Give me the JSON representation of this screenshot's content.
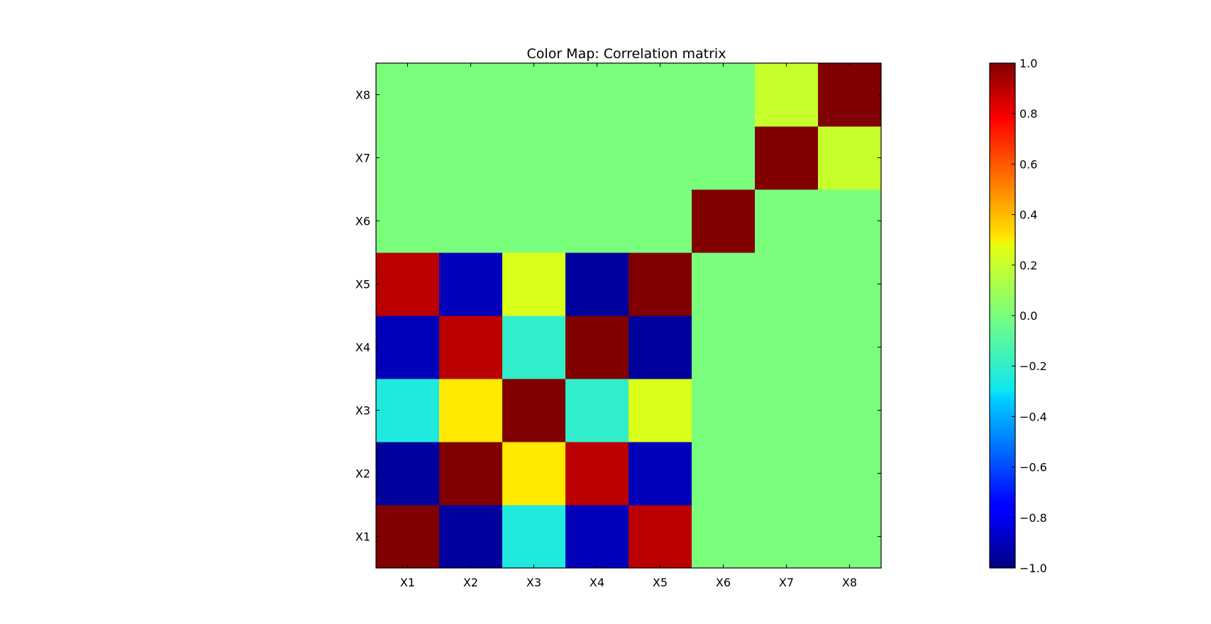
{
  "chart_data": {
    "type": "heatmap",
    "title": "Color Map: Correlation matrix",
    "xlabel": "",
    "ylabel": "",
    "x_labels": [
      "X1",
      "X2",
      "X3",
      "X4",
      "X5",
      "X6",
      "X7",
      "X8"
    ],
    "y_labels": [
      "X1",
      "X2",
      "X3",
      "X4",
      "X5",
      "X6",
      "X7",
      "X8"
    ],
    "matrix": [
      [
        1.0,
        -0.95,
        -0.25,
        -0.9,
        0.9,
        0.0,
        0.0,
        0.0
      ],
      [
        -0.95,
        1.0,
        0.3,
        0.9,
        -0.9,
        0.0,
        0.0,
        0.0
      ],
      [
        -0.25,
        0.3,
        1.0,
        -0.2,
        0.25,
        0.0,
        0.0,
        0.0
      ],
      [
        -0.9,
        0.9,
        -0.2,
        1.0,
        -0.95,
        0.0,
        0.0,
        0.0
      ],
      [
        0.9,
        -0.9,
        0.25,
        -0.95,
        1.0,
        0.0,
        0.0,
        0.0
      ],
      [
        0.0,
        0.0,
        0.0,
        0.0,
        0.0,
        1.0,
        0.0,
        0.0
      ],
      [
        0.0,
        0.0,
        0.0,
        0.0,
        0.0,
        0.0,
        1.0,
        0.2
      ],
      [
        0.0,
        0.0,
        0.0,
        0.0,
        0.0,
        0.0,
        0.2,
        1.0
      ]
    ],
    "colormap": "jet",
    "vmin": -1.0,
    "vmax": 1.0,
    "colorbar": {
      "ticks": [
        1.0,
        0.8,
        0.6,
        0.4,
        0.2,
        0.0,
        -0.2,
        -0.4,
        -0.6,
        -0.8,
        -1.0
      ],
      "tick_labels": [
        "1.0",
        "0.8",
        "0.6",
        "0.4",
        "0.2",
        "0.0",
        "−0.2",
        "−0.4",
        "−0.6",
        "−0.8",
        "−1.0"
      ],
      "placement": "right"
    },
    "grid": false
  }
}
